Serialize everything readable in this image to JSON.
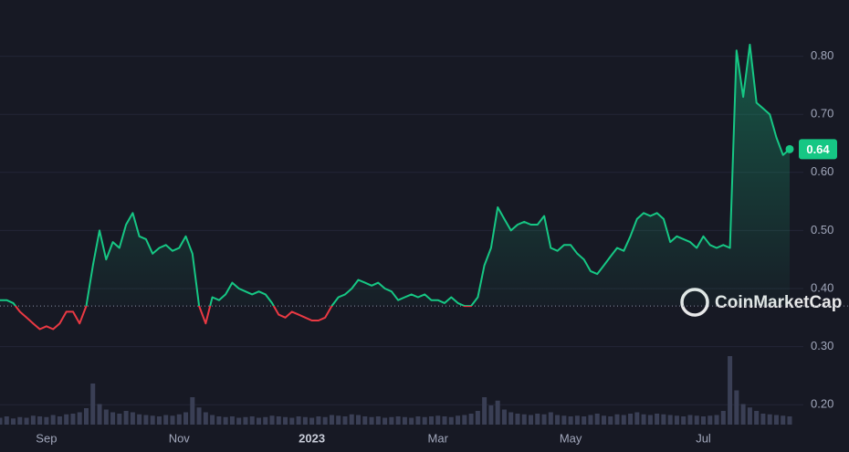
{
  "chart_data": {
    "type": "line",
    "categories": [
      null,
      null,
      null,
      null,
      null,
      null,
      null,
      "Sep",
      null,
      null,
      null,
      null,
      null,
      null,
      null,
      null,
      null,
      null,
      null,
      null,
      null,
      null,
      null,
      null,
      null,
      null,
      null,
      "Nov",
      null,
      null,
      null,
      null,
      null,
      null,
      null,
      null,
      null,
      null,
      null,
      null,
      null,
      null,
      null,
      null,
      null,
      null,
      null,
      "2023",
      null,
      null,
      null,
      null,
      null,
      null,
      null,
      null,
      null,
      null,
      null,
      null,
      null,
      null,
      null,
      null,
      null,
      null,
      "Mar",
      null,
      null,
      null,
      null,
      null,
      null,
      null,
      null,
      null,
      null,
      null,
      null,
      null,
      null,
      null,
      null,
      null,
      null,
      null,
      "May",
      null,
      null,
      null,
      null,
      null,
      null,
      null,
      null,
      null,
      null,
      null,
      null,
      null,
      null,
      null,
      null,
      null,
      null,
      null,
      "Jul",
      null,
      null,
      null,
      null,
      null,
      null,
      null,
      null,
      null,
      null,
      null,
      null,
      null
    ],
    "series": [
      {
        "name": "Price",
        "color": "#16c784",
        "negative_color": "#ea3943",
        "values": [
          0.38,
          0.38,
          0.375,
          0.36,
          0.35,
          0.34,
          0.33,
          0.335,
          0.33,
          0.34,
          0.36,
          0.36,
          0.34,
          0.37,
          0.44,
          0.5,
          0.45,
          0.48,
          0.47,
          0.51,
          0.53,
          0.49,
          0.485,
          0.46,
          0.47,
          0.475,
          0.465,
          0.47,
          0.49,
          0.46,
          0.37,
          0.34,
          0.385,
          0.38,
          0.39,
          0.41,
          0.4,
          0.395,
          0.39,
          0.395,
          0.39,
          0.375,
          0.355,
          0.35,
          0.36,
          0.355,
          0.35,
          0.345,
          0.345,
          0.35,
          0.37,
          0.385,
          0.39,
          0.4,
          0.415,
          0.41,
          0.405,
          0.41,
          0.4,
          0.395,
          0.38,
          0.385,
          0.39,
          0.385,
          0.39,
          0.38,
          0.38,
          0.375,
          0.385,
          0.375,
          0.37,
          0.37,
          0.385,
          0.44,
          0.47,
          0.54,
          0.52,
          0.5,
          0.51,
          0.515,
          0.51,
          0.51,
          0.525,
          0.47,
          0.465,
          0.475,
          0.475,
          0.46,
          0.45,
          0.43,
          0.425,
          0.44,
          0.455,
          0.47,
          0.465,
          0.49,
          0.52,
          0.53,
          0.525,
          0.53,
          0.52,
          0.48,
          0.49,
          0.485,
          0.48,
          0.47,
          0.49,
          0.475,
          0.47,
          0.475,
          0.47,
          0.81,
          0.73,
          0.82,
          0.72,
          0.71,
          0.7,
          0.66,
          0.63,
          0.64
        ]
      }
    ],
    "volume": {
      "color": "#3a3f55",
      "ylim": [
        0,
        100
      ],
      "values": [
        10,
        12,
        9,
        11,
        10,
        13,
        12,
        11,
        14,
        12,
        15,
        16,
        18,
        24,
        60,
        30,
        22,
        18,
        16,
        20,
        18,
        15,
        14,
        13,
        12,
        14,
        13,
        15,
        18,
        40,
        25,
        18,
        14,
        12,
        11,
        12,
        10,
        11,
        12,
        10,
        11,
        13,
        12,
        11,
        10,
        12,
        11,
        10,
        12,
        11,
        14,
        13,
        12,
        15,
        14,
        12,
        11,
        12,
        10,
        11,
        12,
        11,
        10,
        12,
        11,
        12,
        13,
        12,
        11,
        13,
        14,
        16,
        20,
        40,
        28,
        35,
        22,
        18,
        16,
        15,
        14,
        16,
        15,
        18,
        14,
        13,
        12,
        13,
        12,
        14,
        16,
        13,
        12,
        15,
        14,
        16,
        18,
        15,
        14,
        16,
        15,
        14,
        13,
        12,
        14,
        13,
        12,
        13,
        14,
        20,
        100,
        50,
        30,
        25,
        20,
        16,
        15,
        14,
        13,
        12
      ]
    },
    "baseline": 0.37,
    "current_price": 0.64,
    "watermark": "CoinMarketCap",
    "ylim": [
      0.15,
      0.9
    ],
    "yticks": [
      {
        "value": 0.2,
        "label": "0.20"
      },
      {
        "value": 0.3,
        "label": "0.30"
      },
      {
        "value": 0.4,
        "label": "0.40"
      },
      {
        "value": 0.5,
        "label": "0.50"
      },
      {
        "value": 0.6,
        "label": "0.60"
      },
      {
        "value": 0.7,
        "label": "0.70"
      },
      {
        "value": 0.8,
        "label": "0.80"
      }
    ],
    "grid": true
  }
}
